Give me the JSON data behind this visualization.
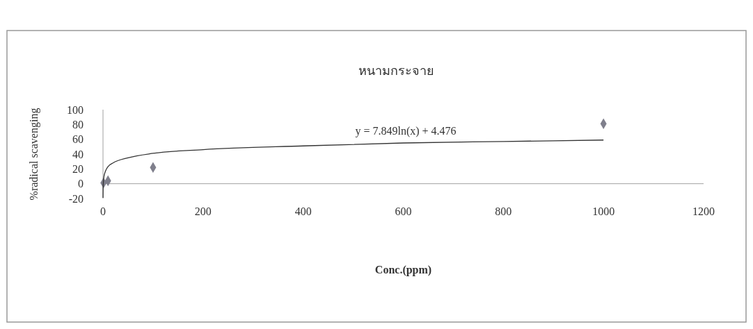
{
  "chart_data": {
    "type": "scatter",
    "title": "หนามกระจาย",
    "xlabel": "Conc.(ppm)",
    "ylabel": "%radical scavenging",
    "xlim": [
      0,
      1200
    ],
    "xticks": [
      0,
      200,
      400,
      600,
      800,
      1000,
      1200
    ],
    "ylim": [
      -20,
      100
    ],
    "yticks": [
      -20,
      0,
      20,
      40,
      60,
      80,
      100
    ],
    "marker": "diamond",
    "annotations": [
      "y = 7.849ln(x) + 4.476"
    ],
    "series": [
      {
        "color": "#7f7f8c",
        "x": [
          1,
          10,
          100,
          1000
        ],
        "values": [
          1,
          4,
          22,
          81
        ]
      },
      {
        "type": "line",
        "color": "#333333",
        "marker": "none",
        "line_style": "solid",
        "x": [
          0.05,
          0.1,
          0.2,
          0.5,
          1,
          2,
          5,
          10,
          20,
          50,
          100,
          200,
          400,
          600,
          800,
          1000
        ],
        "values": [
          -19,
          -14,
          -8,
          -1,
          4,
          10,
          17,
          23,
          28,
          35,
          41,
          46,
          51,
          55,
          57,
          59
        ]
      }
    ]
  }
}
